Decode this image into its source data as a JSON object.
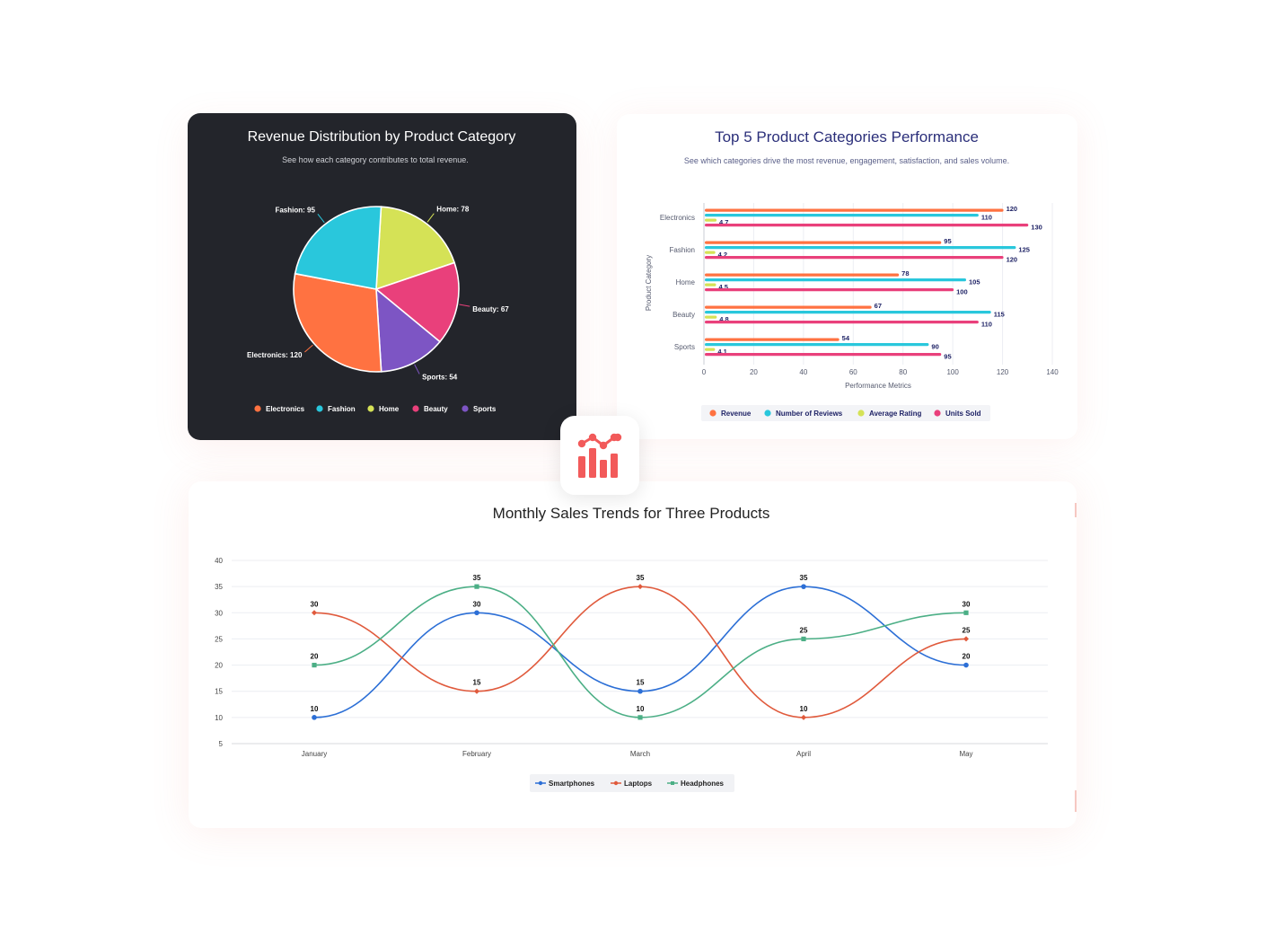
{
  "charts": {
    "pie": {
      "title": "Revenue Distribution by Product Category",
      "subtitle": "See how each category contributes to total revenue."
    },
    "bar": {
      "title": "Top 5 Product Categories Performance",
      "subtitle": "See which categories drive the most revenue, engagement, satisfaction, and sales volume."
    },
    "line": {
      "title": "Monthly Sales Trends for Three Products"
    }
  },
  "colors": {
    "pie_bg": "#23252b",
    "electronics": "#ff7241",
    "fashion": "#29c7dc",
    "home": "#d5e256",
    "beauty": "#e9407b",
    "sports": "#7d55c4",
    "smartphones": "#2c6fd6",
    "laptops": "#e05a3c",
    "headphones": "#4caf86",
    "badge": "#f25a5a"
  },
  "badge_icon": "bar-chart-trend-icon",
  "chart_data": [
    {
      "type": "pie",
      "title": "Revenue Distribution by Product Category",
      "subtitle": "See how each category contributes to total revenue.",
      "slices": [
        {
          "label": "Electronics",
          "value": 120,
          "color": "#ff7241"
        },
        {
          "label": "Fashion",
          "value": 95,
          "color": "#29c7dc"
        },
        {
          "label": "Home",
          "value": 78,
          "color": "#d5e256"
        },
        {
          "label": "Beauty",
          "value": 67,
          "color": "#e9407b"
        },
        {
          "label": "Sports",
          "value": 54,
          "color": "#7d55c4"
        }
      ],
      "legend_position": "bottom"
    },
    {
      "type": "bar",
      "orientation": "horizontal",
      "title": "Top 5 Product Categories Performance",
      "subtitle": "See which categories drive the most revenue, engagement, satisfaction, and sales volume.",
      "categories": [
        "Electronics",
        "Fashion",
        "Home",
        "Beauty",
        "Sports"
      ],
      "series": [
        {
          "name": "Revenue",
          "color": "#ff7241",
          "values": [
            120,
            95,
            78,
            67,
            54
          ]
        },
        {
          "name": "Number of Reviews",
          "color": "#29c7dc",
          "values": [
            110,
            125,
            105,
            115,
            90
          ]
        },
        {
          "name": "Average Rating",
          "color": "#d5e256",
          "values": [
            4.7,
            4.2,
            4.5,
            4.8,
            4.1
          ]
        },
        {
          "name": "Units Sold",
          "color": "#e9407b",
          "values": [
            130,
            120,
            100,
            110,
            95
          ]
        }
      ],
      "xlabel": "Performance Metrics",
      "ylabel": "Product Category",
      "xlim": [
        0,
        140
      ],
      "xticks": [
        0,
        20,
        40,
        60,
        80,
        100,
        120,
        140
      ],
      "legend_position": "bottom"
    },
    {
      "type": "line",
      "title": "Monthly Sales Trends for Three Products",
      "categories": [
        "January",
        "February",
        "March",
        "April",
        "May"
      ],
      "series": [
        {
          "name": "Smartphones",
          "color": "#2c6fd6",
          "marker": "circle",
          "values": [
            10,
            30,
            15,
            35,
            20
          ]
        },
        {
          "name": "Laptops",
          "color": "#e05a3c",
          "marker": "diamond",
          "values": [
            30,
            15,
            35,
            10,
            25
          ]
        },
        {
          "name": "Headphones",
          "color": "#4caf86",
          "marker": "square",
          "values": [
            20,
            35,
            10,
            25,
            30
          ]
        }
      ],
      "ylim": [
        5,
        40
      ],
      "yticks": [
        5,
        10,
        15,
        20,
        25,
        30,
        35,
        40
      ],
      "grid": true,
      "smooth": true,
      "legend_position": "bottom"
    }
  ]
}
